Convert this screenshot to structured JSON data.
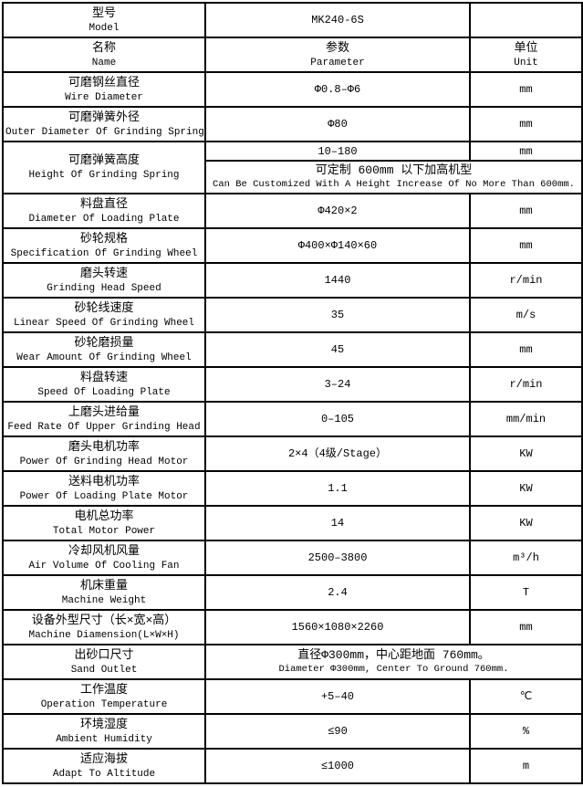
{
  "colors": {
    "border": "#000000",
    "background": "#ffffff",
    "text": "#000000"
  },
  "table": {
    "model_row": {
      "zh": "型号",
      "en": "Model",
      "param": "MK240-6S",
      "unit": ""
    },
    "header_row": {
      "zh": "名称",
      "en": "Name",
      "param_zh": "参数",
      "param_en": "Parameter",
      "unit_zh": "单位",
      "unit_en": "Unit"
    },
    "rows": [
      {
        "zh": "可磨钢丝直径",
        "en": "Wire Diameter",
        "param": "Φ0.8–Φ6",
        "unit": "mm"
      },
      {
        "zh": "可磨弹簧外径",
        "en": "Outer Diameter Of Grinding Spring",
        "param": "Φ80",
        "unit": "mm"
      },
      {
        "zh": "可磨弹簧高度",
        "en": "Height Of Grinding Spring",
        "param": "10–180",
        "unit": "mm",
        "note_zh": "可定制 600mm 以下加高机型",
        "note_en": "Can Be Customized With A Height Increase Of No More Than 600mm."
      },
      {
        "zh": "料盘直径",
        "en": "Diameter Of Loading Plate",
        "param": "Φ420×2",
        "unit": "mm"
      },
      {
        "zh": "砂轮规格",
        "en": "Specification Of Grinding Wheel",
        "param": "Φ400×Φ140×60",
        "unit": "mm"
      },
      {
        "zh": "磨头转速",
        "en": "Grinding Head Speed",
        "param": "1440",
        "unit": "r/min"
      },
      {
        "zh": "砂轮线速度",
        "en": "Linear Speed Of Grinding Wheel",
        "param": "35",
        "unit": "m/s"
      },
      {
        "zh": "砂轮磨损量",
        "en": "Wear Amount Of Grinding Wheel",
        "param": "45",
        "unit": "mm"
      },
      {
        "zh": "料盘转速",
        "en": "Speed Of Loading Plate",
        "param": "3–24",
        "unit": "r/min"
      },
      {
        "zh": "上磨头进给量",
        "en": "Feed Rate Of Upper Grinding Head",
        "param": "0–105",
        "unit": "mm/min"
      },
      {
        "zh": "磨头电机功率",
        "en": "Power Of Grinding Head Motor",
        "param": "2×4（4级/Stage）",
        "unit": "KW"
      },
      {
        "zh": "送料电机功率",
        "en": "Power Of Loading Plate Motor",
        "param": "1.1",
        "unit": "KW"
      },
      {
        "zh": "电机总功率",
        "en": "Total Motor Power",
        "param": "14",
        "unit": "KW"
      },
      {
        "zh": "冷却风机风量",
        "en": "Air Volume Of Cooling Fan",
        "param": "2500–3800",
        "unit": "m³/h"
      },
      {
        "zh": "机床重量",
        "en": "Machine Weight",
        "param": "2.4",
        "unit": "T"
      },
      {
        "zh": "设备外型尺寸（长×宽×高）",
        "en": "Machine Diamension(L×W×H)",
        "param": "1560×1080×2260",
        "unit": "mm"
      },
      {
        "zh": "出砂口尺寸",
        "en": "Sand Outlet",
        "param_zh": "直径Φ300mm，中心距地面 760mm。",
        "param_en": "Diameter Φ300mm, Center To Ground 760mm."
      },
      {
        "zh": "工作温度",
        "en": "Operation Temperature",
        "param": "+5–40",
        "unit": "℃"
      },
      {
        "zh": "环境湿度",
        "en": "Ambient Humidity",
        "param": "≤90",
        "unit": "%"
      },
      {
        "zh": "适应海拔",
        "en": "Adapt To Altitude",
        "param": "≤1000",
        "unit": "m"
      }
    ]
  }
}
